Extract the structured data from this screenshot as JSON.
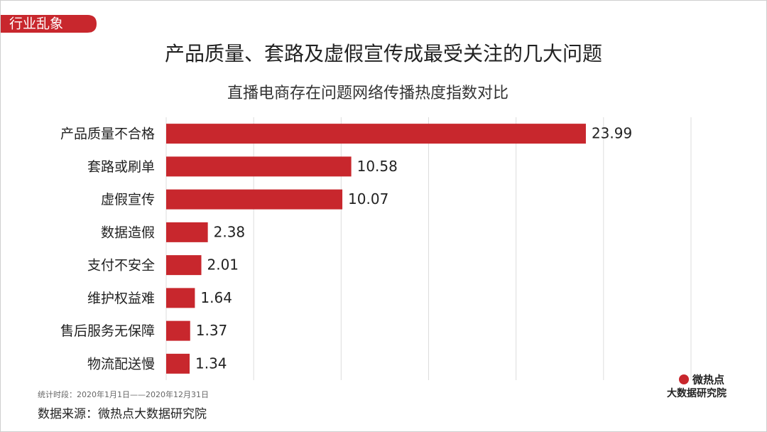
{
  "tag": "行业乱象",
  "chart_data": {
    "type": "bar",
    "orientation": "horizontal",
    "title": "产品质量、套路及虚假宣传成最受关注的几大问题",
    "subtitle": "直播电商存在问题网络传播热度指数对比",
    "categories": [
      "产品质量不合格",
      "套路或刷单",
      "虚假宣传",
      "数据造假",
      "支付不安全",
      "维护权益难",
      "售后服务无保障",
      "物流配送慢"
    ],
    "values": [
      23.99,
      10.58,
      10.07,
      2.38,
      2.01,
      1.64,
      1.37,
      1.34
    ],
    "color": "#c8272d",
    "xlim": [
      0,
      30
    ],
    "xticks": [
      0,
      5,
      10,
      15,
      20,
      25,
      30
    ],
    "grid": true
  },
  "footer": {
    "period": "统计时段：2020年1月1日——2020年12月31日",
    "source": "数据来源：微热点大数据研究院"
  },
  "logo": {
    "line1": "微热点",
    "line2": "大数据研究院"
  }
}
